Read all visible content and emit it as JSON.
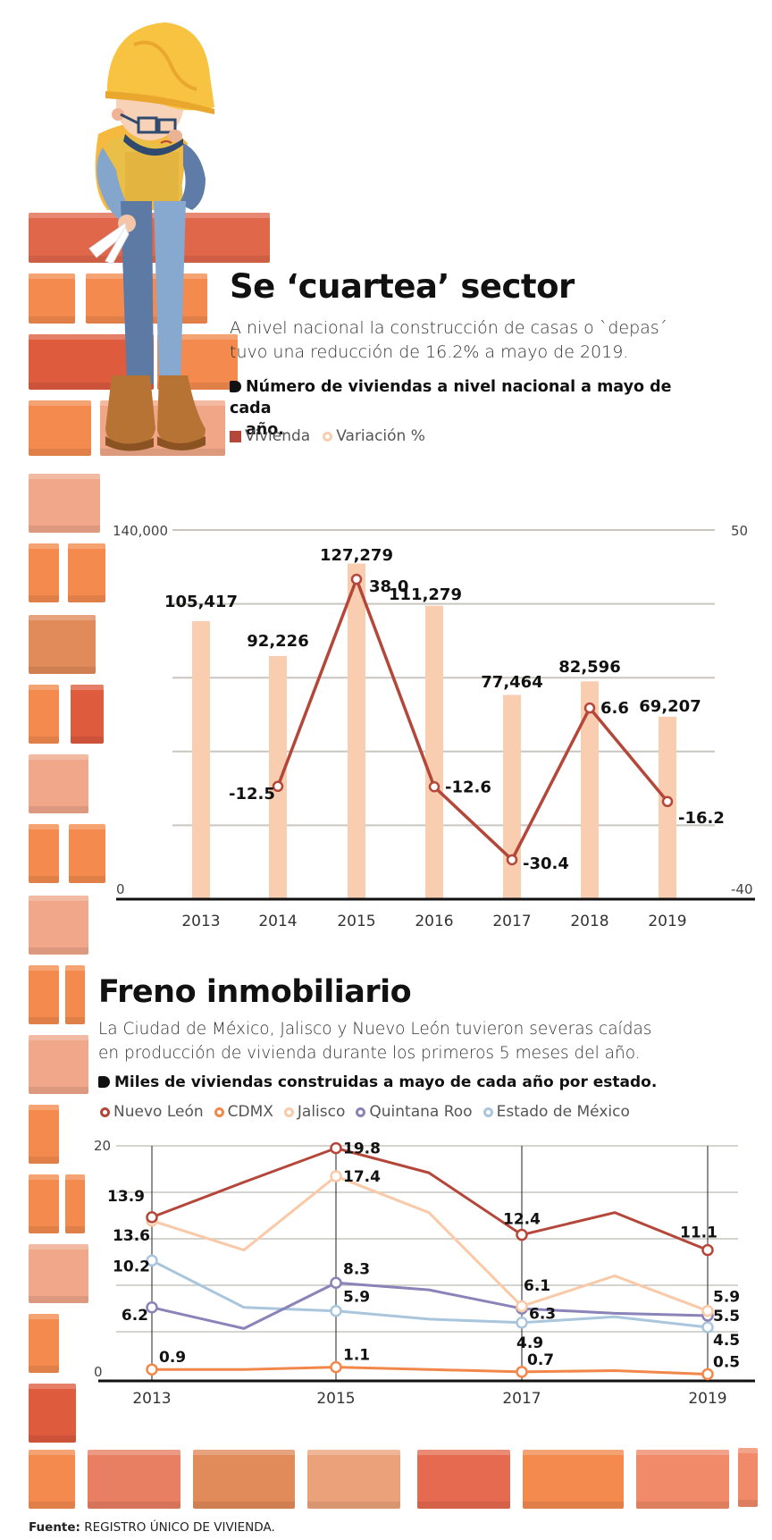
{
  "section1": {
    "title": "Se ‘cuartea’ sector",
    "lead_line1": "A nivel nacional la construcción de casas o `depas´",
    "lead_line2": "tuvo una reducción de 16.2% a mayo de 2019.",
    "subhead_line1": "Número de viviendas a nivel nacional a mayo de cada",
    "subhead_line2": "año.",
    "legend": [
      {
        "label": "Vivienda",
        "swatch": "square",
        "color": "#b5473a"
      },
      {
        "label": "Variación %",
        "swatch": "ring",
        "color": "#f9cdb0"
      }
    ]
  },
  "section2": {
    "title": "Freno inmobiliario",
    "lead_line1": "La Ciudad de México,  Jalisco y Nuevo León tuvieron severas caídas",
    "lead_line2": "en producción de vivienda durante los primeros 5 meses del año.",
    "subhead": "Miles de viviendas construidas a mayo de cada año por estado.",
    "legend": [
      {
        "label": "Nuevo León",
        "color": "#b5473a"
      },
      {
        "label": "CDMX",
        "color": "#f2874a"
      },
      {
        "label": "Jalisco",
        "color": "#f9c9a8"
      },
      {
        "label": "Quintana Roo",
        "color": "#8a83b8"
      },
      {
        "label": "Estado de México",
        "color": "#a9c6dc"
      }
    ]
  },
  "source": {
    "label": "Fuente:",
    "text": "REGISTRO ÚNICO DE VIVIENDA."
  },
  "colors": {
    "bar": "#f9cdb0",
    "line": "#b5473a",
    "grid": "#c9c6c0",
    "axis": "#111111"
  },
  "chart_data": [
    {
      "type": "bar",
      "title": "Número de viviendas a nivel nacional a mayo de cada año.",
      "categories": [
        "2013",
        "2014",
        "2015",
        "2016",
        "2017",
        "2018",
        "2019"
      ],
      "series": [
        {
          "name": "Vivienda",
          "type": "bar",
          "axis": "left",
          "values": [
            105417,
            92226,
            127279,
            111279,
            77464,
            82596,
            69207
          ],
          "labels": [
            "105,417",
            "92,226",
            "127,279",
            "111,279",
            "77,464",
            "82,596",
            "69,207"
          ]
        },
        {
          "name": "Variación %",
          "type": "line",
          "axis": "right",
          "x": [
            "2014",
            "2015",
            "2016",
            "2017",
            "2018",
            "2019"
          ],
          "values": [
            -12.5,
            38.0,
            -12.6,
            -30.4,
            6.6,
            -16.2
          ],
          "labels": [
            "-12.5",
            "38.0",
            "-12.6",
            "-30.4",
            "6.6",
            "-16.2"
          ]
        }
      ],
      "ylim_left": [
        0,
        140000
      ],
      "ylim_right": [
        -40,
        50
      ],
      "left_tick_labels": [
        "140,000",
        "0"
      ],
      "right_tick_labels": [
        "50",
        "-40"
      ],
      "grid": true,
      "legend_position": "top"
    },
    {
      "type": "line",
      "title": "Miles de viviendas construidas a mayo de cada año por estado.",
      "x": [
        "2013",
        "2014",
        "2015",
        "2016",
        "2017",
        "2018",
        "2019"
      ],
      "x_tick_labels": [
        "2013",
        "2015",
        "2017",
        "2019"
      ],
      "series": [
        {
          "name": "Nuevo León",
          "values": [
            13.9,
            16.9,
            19.8,
            17.7,
            12.4,
            14.3,
            11.1
          ]
        },
        {
          "name": "CDMX",
          "values": [
            0.9,
            0.9,
            1.1,
            0.9,
            0.7,
            0.8,
            0.5
          ]
        },
        {
          "name": "Jalisco",
          "values": [
            13.6,
            11.1,
            17.4,
            14.3,
            6.3,
            8.9,
            5.9
          ]
        },
        {
          "name": "Quintana Roo",
          "values": [
            6.2,
            4.4,
            8.3,
            7.7,
            6.1,
            5.7,
            5.5
          ]
        },
        {
          "name": "Estado de México",
          "values": [
            10.2,
            6.2,
            5.9,
            5.2,
            4.9,
            5.4,
            4.5
          ]
        }
      ],
      "ylim": [
        0,
        20
      ],
      "y_tick_labels": [
        "20",
        "0"
      ],
      "grid": true,
      "legend_position": "top"
    }
  ]
}
